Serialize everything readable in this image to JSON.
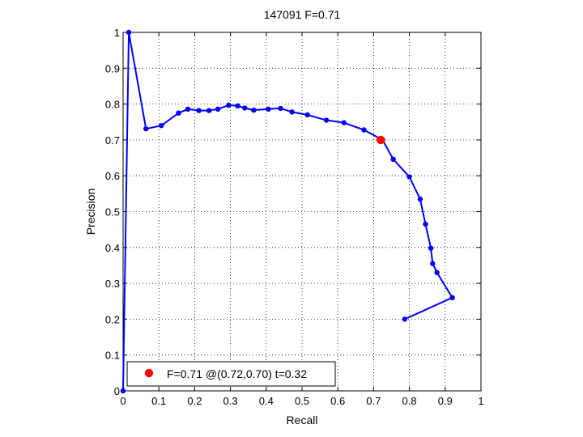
{
  "chart_data": {
    "type": "line",
    "title": "147091 F=0.71",
    "xlabel": "Recall",
    "ylabel": "Precision",
    "xlim": [
      0,
      1
    ],
    "ylim": [
      0,
      1
    ],
    "xticks": [
      "0",
      "0.1",
      "0.2",
      "0.3",
      "0.4",
      "0.5",
      "0.6",
      "0.7",
      "0.8",
      "0.9",
      "1"
    ],
    "yticks": [
      "0",
      "0.1",
      "0.2",
      "0.3",
      "0.4",
      "0.5",
      "0.6",
      "0.7",
      "0.8",
      "0.9",
      "1"
    ],
    "grid": true,
    "legend_position": "bottom-left",
    "series": [
      {
        "color": "#0000ff",
        "points": [
          [
            0.0,
            0.0
          ],
          [
            0.016,
            1.0
          ],
          [
            0.064,
            0.731
          ],
          [
            0.107,
            0.74
          ],
          [
            0.155,
            0.775
          ],
          [
            0.181,
            0.786
          ],
          [
            0.212,
            0.782
          ],
          [
            0.24,
            0.782
          ],
          [
            0.265,
            0.786
          ],
          [
            0.295,
            0.797
          ],
          [
            0.32,
            0.795
          ],
          [
            0.34,
            0.789
          ],
          [
            0.365,
            0.783
          ],
          [
            0.406,
            0.786
          ],
          [
            0.44,
            0.788
          ],
          [
            0.472,
            0.778
          ],
          [
            0.515,
            0.77
          ],
          [
            0.568,
            0.755
          ],
          [
            0.617,
            0.748
          ],
          [
            0.673,
            0.728
          ],
          [
            0.725,
            0.7
          ],
          [
            0.755,
            0.646
          ],
          [
            0.8,
            0.597
          ],
          [
            0.83,
            0.535
          ],
          [
            0.845,
            0.465
          ],
          [
            0.86,
            0.398
          ],
          [
            0.865,
            0.355
          ],
          [
            0.877,
            0.33
          ],
          [
            0.92,
            0.26
          ],
          [
            0.787,
            0.2
          ]
        ]
      }
    ],
    "highlight": {
      "x": 0.72,
      "y": 0.7,
      "color": "#ff0000"
    },
    "legend": {
      "label": "F=0.71 @(0.72,0.70) t=0.32"
    }
  }
}
